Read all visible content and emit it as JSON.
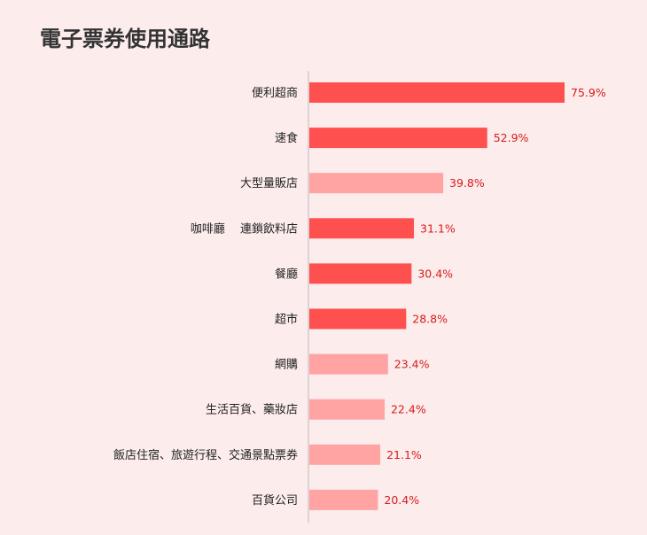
{
  "title": "電子票券使用通路",
  "colors": {
    "primary": "#ff5050",
    "secondary": "#ffa3a3",
    "label": "#d81b1b",
    "background": "#fcecec"
  },
  "chart_data": {
    "type": "bar",
    "orientation": "horizontal",
    "title": "電子票券使用通路",
    "xlabel": "",
    "ylabel": "",
    "xlim": [
      0,
      80
    ],
    "grid": false,
    "legend": "none",
    "categories": [
      "便利超商",
      "速食",
      "大型量販店",
      "咖啡廳　 連鎖飲料店",
      "餐廳",
      "超市",
      "網購",
      "生活百貨、藥妝店",
      "飯店住宿、旅遊行程、交通景點票券",
      "百貨公司"
    ],
    "values": [
      75.9,
      52.9,
      39.8,
      31.1,
      30.4,
      28.8,
      23.4,
      22.4,
      21.1,
      20.4
    ],
    "value_labels": [
      "75.9%",
      "52.9%",
      "39.8%",
      "31.1%",
      "30.4%",
      "28.8%",
      "23.4%",
      "22.4%",
      "21.1%",
      "20.4%"
    ],
    "bar_colors": [
      "#ff5050",
      "#ff5050",
      "#ffa3a3",
      "#ff5050",
      "#ff5050",
      "#ff5050",
      "#ffa3a3",
      "#ffa3a3",
      "#ffa3a3",
      "#ffa3a3"
    ]
  }
}
